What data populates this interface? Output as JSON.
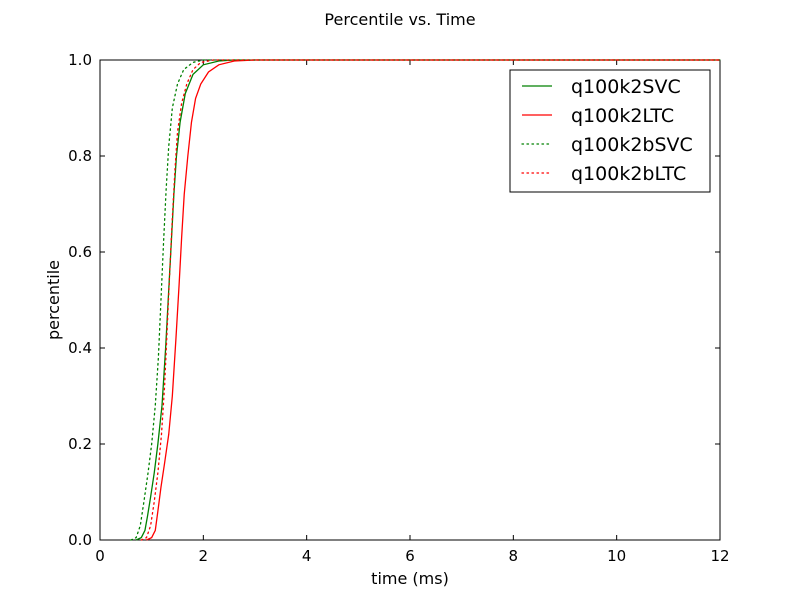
{
  "chart_data": {
    "type": "line",
    "title": "Percentile vs. Time",
    "xlabel": "time (ms)",
    "ylabel": "percentile",
    "xlim": [
      0,
      12
    ],
    "ylim": [
      0.0,
      1.0
    ],
    "x_ticks": [
      "0",
      "2",
      "4",
      "6",
      "8",
      "10",
      "12"
    ],
    "y_ticks": [
      "0.0",
      "0.2",
      "0.4",
      "0.6",
      "0.8",
      "1.0"
    ],
    "grid": false,
    "legend_position": "top-right",
    "series": [
      {
        "name": "q100k2SVC",
        "color": "#008000",
        "style": "solid",
        "points": [
          [
            0.7,
            0.0
          ],
          [
            0.8,
            0.005
          ],
          [
            0.87,
            0.02
          ],
          [
            0.92,
            0.05
          ],
          [
            0.98,
            0.09
          ],
          [
            1.05,
            0.14
          ],
          [
            1.12,
            0.2
          ],
          [
            1.2,
            0.28
          ],
          [
            1.27,
            0.4
          ],
          [
            1.33,
            0.52
          ],
          [
            1.38,
            0.62
          ],
          [
            1.43,
            0.72
          ],
          [
            1.48,
            0.8
          ],
          [
            1.55,
            0.87
          ],
          [
            1.65,
            0.93
          ],
          [
            1.8,
            0.97
          ],
          [
            2.0,
            0.99
          ],
          [
            2.3,
            0.998
          ],
          [
            2.6,
            1.0
          ],
          [
            12.0,
            1.0
          ]
        ]
      },
      {
        "name": "q100k2LTC",
        "color": "#ff0000",
        "style": "solid",
        "points": [
          [
            0.9,
            0.0
          ],
          [
            1.0,
            0.005
          ],
          [
            1.07,
            0.02
          ],
          [
            1.12,
            0.06
          ],
          [
            1.18,
            0.11
          ],
          [
            1.25,
            0.16
          ],
          [
            1.33,
            0.22
          ],
          [
            1.4,
            0.3
          ],
          [
            1.47,
            0.42
          ],
          [
            1.53,
            0.53
          ],
          [
            1.58,
            0.63
          ],
          [
            1.63,
            0.72
          ],
          [
            1.7,
            0.8
          ],
          [
            1.77,
            0.87
          ],
          [
            1.85,
            0.92
          ],
          [
            1.95,
            0.95
          ],
          [
            2.1,
            0.975
          ],
          [
            2.3,
            0.99
          ],
          [
            2.6,
            0.998
          ],
          [
            3.0,
            1.0
          ],
          [
            12.0,
            1.0
          ]
        ]
      },
      {
        "name": "q100k2bSVC",
        "color": "#008000",
        "style": "dotted",
        "points": [
          [
            0.6,
            0.0
          ],
          [
            0.7,
            0.005
          ],
          [
            0.78,
            0.03
          ],
          [
            0.85,
            0.08
          ],
          [
            0.93,
            0.14
          ],
          [
            1.0,
            0.2
          ],
          [
            1.07,
            0.28
          ],
          [
            1.13,
            0.38
          ],
          [
            1.18,
            0.5
          ],
          [
            1.23,
            0.62
          ],
          [
            1.28,
            0.73
          ],
          [
            1.33,
            0.82
          ],
          [
            1.4,
            0.9
          ],
          [
            1.5,
            0.95
          ],
          [
            1.62,
            0.98
          ],
          [
            1.8,
            0.995
          ],
          [
            2.0,
            1.0
          ],
          [
            12.0,
            1.0
          ]
        ]
      },
      {
        "name": "q100k2bLTC",
        "color": "#ff0000",
        "style": "dotted",
        "points": [
          [
            0.8,
            0.0
          ],
          [
            0.9,
            0.005
          ],
          [
            0.98,
            0.03
          ],
          [
            1.05,
            0.08
          ],
          [
            1.12,
            0.14
          ],
          [
            1.19,
            0.22
          ],
          [
            1.25,
            0.32
          ],
          [
            1.3,
            0.44
          ],
          [
            1.35,
            0.56
          ],
          [
            1.4,
            0.67
          ],
          [
            1.45,
            0.77
          ],
          [
            1.5,
            0.85
          ],
          [
            1.58,
            0.91
          ],
          [
            1.68,
            0.95
          ],
          [
            1.8,
            0.98
          ],
          [
            1.95,
            0.995
          ],
          [
            2.2,
            1.0
          ],
          [
            12.0,
            1.0
          ]
        ]
      }
    ]
  }
}
